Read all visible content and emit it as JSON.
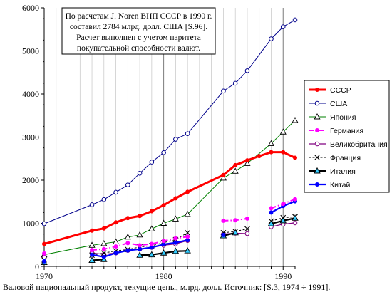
{
  "chart_data": {
    "type": "line",
    "xlabel": "",
    "ylabel": "",
    "xlim": [
      1970,
      1991
    ],
    "ylim": [
      0,
      6000
    ],
    "x_ticks": [
      1970,
      1980,
      1990
    ],
    "y_ticks": [
      0,
      1000,
      2000,
      3000,
      4000,
      5000,
      6000
    ],
    "grid": "vertical",
    "legend": "right",
    "annotation": [
      "По расчетам J. Noren ВНП СССР в 1990 г.",
      "составил 2784 млрд. долл. США [S.96].",
      "Расчет выполнен с учетом паритета",
      "покупательной способности валют."
    ],
    "series": [
      {
        "name": "СССР",
        "color": "#ff0000",
        "marker": "circle-filled",
        "x": [
          1970,
          1974,
          1975,
          1976,
          1977,
          1978,
          1979,
          1980,
          1981,
          1982,
          1985,
          1986,
          1987,
          1988,
          1989,
          1990,
          1991
        ],
        "y": [
          520,
          830,
          880,
          1020,
          1120,
          1170,
          1280,
          1420,
          1580,
          1730,
          2120,
          2350,
          2460,
          2560,
          2650,
          2650,
          2520
        ]
      },
      {
        "name": "США",
        "color": "#00008b",
        "marker": "circle-open",
        "x": [
          1970,
          1974,
          1975,
          1976,
          1977,
          1978,
          1979,
          1980,
          1981,
          1982,
          1985,
          1986,
          1987,
          1989,
          1990,
          1991
        ],
        "y": [
          990,
          1430,
          1550,
          1720,
          1890,
          2160,
          2420,
          2640,
          2950,
          3080,
          4070,
          4250,
          4540,
          5280,
          5560,
          5720
        ]
      },
      {
        "name": "Япония",
        "color": "#008000",
        "marker": "triangle-open",
        "x": [
          1970,
          1974,
          1975,
          1976,
          1977,
          1978,
          1979,
          1980,
          1981,
          1982,
          1985,
          1986,
          1987,
          1989,
          1990,
          1991
        ],
        "y": [
          270,
          490,
          530,
          570,
          680,
          730,
          870,
          1000,
          1100,
          1210,
          2050,
          2210,
          2390,
          2850,
          3120,
          3390
        ]
      },
      {
        "name": "Германия",
        "color": "#ff00ff",
        "marker": "circle-filled",
        "segments": [
          {
            "x": [
              1970
            ],
            "y": [
              300
            ]
          },
          {
            "x": [
              1974,
              1975,
              1976,
              1977,
              1978,
              1979,
              1980,
              1981,
              1982
            ],
            "y": [
              380,
              400,
              460,
              540,
              490,
              520,
              590,
              650,
              690
            ]
          },
          {
            "x": [
              1985,
              1986,
              1987
            ],
            "y": [
              1060,
              1070,
              1110
            ]
          },
          {
            "x": [
              1989,
              1990,
              1991
            ],
            "y": [
              1350,
              1450,
              1560
            ]
          }
        ]
      },
      {
        "name": "Великобритания",
        "color": "#800080",
        "marker": "circle-open",
        "segments": [
          {
            "x": [
              1970
            ],
            "y": [
              210
            ]
          },
          {
            "x": [
              1974,
              1975,
              1976,
              1977,
              1978,
              1979,
              1980,
              1981,
              1982
            ],
            "y": [
              310,
              280,
              310,
              370,
              400,
              440,
              490,
              520,
              600
            ]
          },
          {
            "x": [
              1985,
              1986,
              1987
            ],
            "y": [
              750,
              770,
              760
            ]
          },
          {
            "x": [
              1989,
              1990,
              1991
            ],
            "y": [
              920,
              980,
              1010
            ]
          }
        ]
      },
      {
        "name": "Франция",
        "color": "#000000",
        "marker": "cross",
        "segments": [
          {
            "x": [
              1970
            ],
            "y": [
              150
            ]
          },
          {
            "x": [
              1974,
              1975,
              1976,
              1977,
              1978,
              1979,
              1980,
              1981,
              1982
            ],
            "y": [
              260,
              310,
              360,
              390,
              450,
              480,
              550,
              620,
              780
            ]
          },
          {
            "x": [
              1985,
              1986,
              1987
            ],
            "y": [
              780,
              810,
              870
            ]
          },
          {
            "x": [
              1989,
              1990,
              1991
            ],
            "y": [
              1050,
              1130,
              1150
            ]
          }
        ]
      },
      {
        "name": "Италия",
        "color": "#000000",
        "marker": "triangle-filled",
        "segments": [
          {
            "x": [
              1970
            ],
            "y": [
              90
            ]
          },
          {
            "x": [
              1974,
              1975
            ],
            "y": [
              140,
              160
            ]
          },
          {
            "x": [
              1978,
              1979,
              1980,
              1981,
              1982
            ],
            "y": [
              260,
              270,
              310,
              350,
              360
            ]
          },
          {
            "x": [
              1985,
              1986
            ],
            "y": [
              710,
              780
            ]
          },
          {
            "x": [
              1989,
              1990,
              1991
            ],
            "y": [
              990,
              1060,
              1120
            ]
          }
        ]
      },
      {
        "name": "Китай",
        "color": "#0000ff",
        "marker": "circle-filled",
        "segments": [
          {
            "x": [
              1970
            ],
            "y": [
              120
            ]
          },
          {
            "x": [
              1974,
              1975,
              1976,
              1977,
              1978,
              1979,
              1980,
              1981,
              1982
            ],
            "y": [
              270,
              220,
              310,
              370,
              400,
              440,
              510,
              550,
              610
            ]
          },
          {
            "x": [
              1985
            ],
            "y": [
              730
            ]
          },
          {
            "x": [
              1989,
              1990,
              1991
            ],
            "y": [
              1250,
              1400,
              1510
            ]
          }
        ]
      }
    ],
    "caption": "Валовой национальный продукт, текущие цены, млрд. долл. Источник: [S.3, 1974 ÷ 1991]."
  }
}
